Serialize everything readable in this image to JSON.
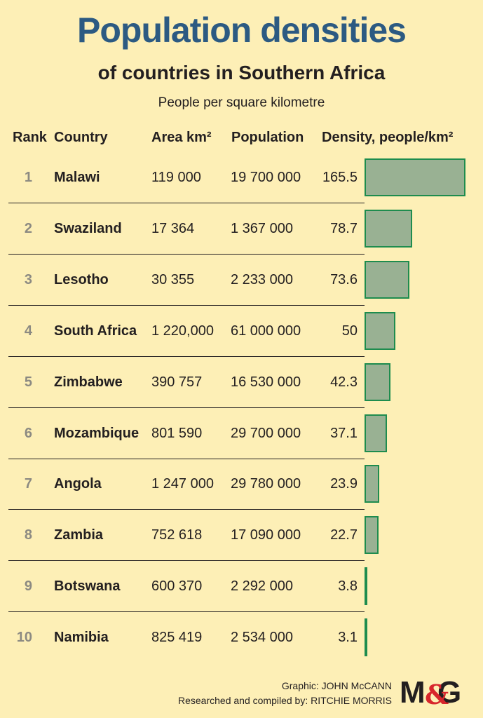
{
  "chart_data": {
    "type": "table",
    "title": "Population densities",
    "subtitle": "of countries in Southern Africa",
    "unit_note": "People per square kilometre",
    "columns": [
      "Rank",
      "Country",
      "Area km²",
      "Population",
      "Density, people/km²"
    ],
    "rows": [
      {
        "rank": "1",
        "country": "Malawi",
        "area": "119 000",
        "population": "19 700 000",
        "density_label": "165.5",
        "density": 165.5
      },
      {
        "rank": "2",
        "country": "Swaziland",
        "area": "17 364",
        "population": "1 367 000",
        "density_label": "78.7",
        "density": 78.7
      },
      {
        "rank": "3",
        "country": "Lesotho",
        "area": "30 355",
        "population": "2 233 000",
        "density_label": "73.6",
        "density": 73.6
      },
      {
        "rank": "4",
        "country": "South Africa",
        "area": "1 220,000",
        "population": "61 000 000",
        "density_label": "50",
        "density": 50
      },
      {
        "rank": "5",
        "country": "Zimbabwe",
        "area": "390 757",
        "population": "16 530 000",
        "density_label": "42.3",
        "density": 42.3
      },
      {
        "rank": "6",
        "country": "Mozambique",
        "area": "801 590",
        "population": "29 700 000",
        "density_label": "37.1",
        "density": 37.1
      },
      {
        "rank": "7",
        "country": "Angola",
        "area": "1 247 000",
        "population": "29 780 000",
        "density_label": "23.9",
        "density": 23.9
      },
      {
        "rank": "8",
        "country": "Zambia",
        "area": "752 618",
        "population": "17 090 000",
        "density_label": "22.7",
        "density": 22.7
      },
      {
        "rank": "9",
        "country": "Botswana",
        "area": "600 370",
        "population": "2 292 000",
        "density_label": "3.8",
        "density": 3.8
      },
      {
        "rank": "10",
        "country": "Namibia",
        "area": "825 419",
        "population": "2 534 000",
        "density_label": "3.1",
        "density": 3.1
      }
    ],
    "bar_colors": {
      "fill": "#99b193",
      "stroke": "#1e8c4e"
    }
  },
  "credits": {
    "graphic": "Graphic: JOHN McCANN",
    "research": "Researched and compiled by: RITCHIE MORRIS"
  },
  "logo": {
    "text": "M&G"
  },
  "colors": {
    "background": "#fdefb6",
    "title": "#2c5a82",
    "logo_red": "#d7262c"
  }
}
